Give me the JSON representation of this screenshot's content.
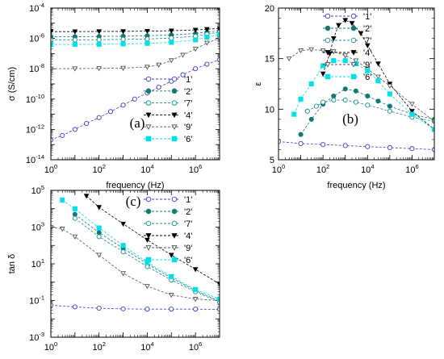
{
  "chart_data": [
    {
      "type": "scatter",
      "panel_label": "(a)",
      "xlabel": "frequency (Hz)",
      "ylabel": "σ (S/cm)",
      "xscale": "log",
      "yscale": "log",
      "xlim": [
        1,
        10000000
      ],
      "ylim": [
        1e-14,
        0.0001
      ],
      "x_ticks": [
        {
          "v": 1,
          "b": "10",
          "e": "0"
        },
        {
          "v": 100,
          "b": "10",
          "e": "2"
        },
        {
          "v": 10000,
          "b": "10",
          "e": "4"
        },
        {
          "v": 1000000,
          "b": "10",
          "e": "6"
        }
      ],
      "y_ticks": [
        {
          "v": 1e-14,
          "b": "10",
          "e": "-14"
        },
        {
          "v": 1e-12,
          "b": "10",
          "e": "-12"
        },
        {
          "v": 1e-10,
          "b": "10",
          "e": "-10"
        },
        {
          "v": 1e-08,
          "b": "10",
          "e": "-8"
        },
        {
          "v": 1e-06,
          "b": "10",
          "e": "-6"
        },
        {
          "v": 0.0001,
          "b": "10",
          "e": "-4"
        }
      ],
      "legend_position": "bottom-right",
      "series": [
        {
          "name": "'1'",
          "marker": "circle-open",
          "color": "#3c3cc8",
          "x": [
            1,
            3,
            10,
            30,
            100,
            300,
            1000,
            3000,
            10000,
            30000,
            100000,
            300000,
            1000000,
            3000000,
            10000000
          ],
          "y": [
            2e-13,
            4e-13,
            1e-12,
            2.5e-12,
            6e-12,
            1.5e-11,
            4e-11,
            1e-10,
            2.5e-10,
            6e-10,
            1.5e-09,
            4e-09,
            1e-08,
            2e-08,
            4e-08
          ]
        },
        {
          "name": "'2'",
          "marker": "circle-filled",
          "color": "#127a74",
          "x": [
            1,
            10,
            100,
            1000,
            10000,
            100000,
            1000000,
            3000000,
            10000000
          ],
          "y": [
            1.3e-06,
            1.3e-06,
            1.35e-06,
            1.4e-06,
            1.5e-06,
            1.7e-06,
            2.1e-06,
            2.6e-06,
            3.2e-06
          ]
        },
        {
          "name": "'7'",
          "marker": "circle-open",
          "color": "#1a8f8a",
          "x": [
            1,
            10,
            100,
            1000,
            10000,
            100000,
            1000000,
            3000000,
            10000000
          ],
          "y": [
            8e-07,
            8e-07,
            8.2e-07,
            8.6e-07,
            9.2e-07,
            1.05e-06,
            1.4e-06,
            1.9e-06,
            2.6e-06
          ]
        },
        {
          "name": "'4'",
          "marker": "triangle-down-filled",
          "color": "#000000",
          "x": [
            1,
            10,
            100,
            1000,
            10000,
            100000,
            1000000,
            3000000,
            10000000
          ],
          "y": [
            2.8e-06,
            2.8e-06,
            2.85e-06,
            2.9e-06,
            3e-06,
            3.2e-06,
            3.6e-06,
            4e-06,
            4.5e-06
          ]
        },
        {
          "name": "'9'",
          "marker": "triangle-down-open",
          "color": "#555555",
          "x": [
            1,
            10,
            100,
            1000,
            10000,
            30000,
            100000,
            300000,
            1000000,
            3000000,
            10000000
          ],
          "y": [
            1e-08,
            1.02e-08,
            1.05e-08,
            1.1e-08,
            1.3e-08,
            1.8e-08,
            3.5e-08,
            8e-08,
            2e-07,
            5e-07,
            1e-06
          ]
        },
        {
          "name": "'6'",
          "marker": "square-filled",
          "color": "#00e0e8",
          "x": [
            1,
            10,
            100,
            1000,
            10000,
            100000,
            1000000,
            3000000,
            10000000
          ],
          "y": [
            4e-07,
            4e-07,
            4.1e-07,
            4.3e-07,
            4.7e-07,
            5.5e-07,
            8e-07,
            1.2e-06,
            1.8e-06
          ]
        }
      ]
    },
    {
      "type": "scatter",
      "panel_label": "(b)",
      "xlabel": "frequency (Hz)",
      "ylabel": "ε",
      "xscale": "log",
      "yscale": "linear",
      "xlim": [
        1,
        10000000
      ],
      "ylim": [
        5,
        20
      ],
      "x_ticks": [
        {
          "v": 1,
          "b": "10",
          "e": "0"
        },
        {
          "v": 100,
          "b": "10",
          "e": "2"
        },
        {
          "v": 10000,
          "b": "10",
          "e": "4"
        },
        {
          "v": 1000000,
          "b": "10",
          "e": "6"
        }
      ],
      "y_ticks": [
        {
          "v": 5,
          "b": "5",
          "e": ""
        },
        {
          "v": 10,
          "b": "10",
          "e": ""
        },
        {
          "v": 15,
          "b": "15",
          "e": ""
        },
        {
          "v": 20,
          "b": "20",
          "e": ""
        }
      ],
      "legend_position": "top-right",
      "series": [
        {
          "name": "'1'",
          "marker": "circle-open",
          "color": "#3c3cc8",
          "x": [
            1,
            10,
            100,
            1000,
            10000,
            100000,
            1000000,
            10000000
          ],
          "y": [
            6.8,
            6.6,
            6.5,
            6.4,
            6.3,
            6.2,
            6.1,
            6.0
          ]
        },
        {
          "name": "'2'",
          "marker": "circle-filled",
          "color": "#127a74",
          "x": [
            10,
            30,
            100,
            300,
            1000,
            3000,
            10000,
            30000,
            100000,
            1000000,
            10000000
          ],
          "y": [
            7.5,
            9,
            10.5,
            11.3,
            12,
            11.8,
            11.3,
            10.8,
            10.3,
            9.5,
            9.0
          ]
        },
        {
          "name": "'7'",
          "marker": "circle-open",
          "color": "#1a8f8a",
          "x": [
            20,
            50,
            100,
            300,
            1000,
            3000,
            10000,
            100000,
            1000000,
            10000000
          ],
          "y": [
            9.8,
            10.3,
            10.7,
            10.9,
            10.9,
            10.7,
            10.4,
            9.8,
            9.2,
            8.8
          ]
        },
        {
          "name": "'4'",
          "marker": "triangle-down-filled",
          "color": "#000000",
          "x": [
            100,
            200,
            300,
            500,
            1000,
            2000,
            5000,
            10000,
            30000,
            100000,
            1000000,
            10000000
          ],
          "y": [
            13.5,
            15.5,
            17,
            18.3,
            18.8,
            18.5,
            17.5,
            16.3,
            14.5,
            12.5,
            9.8,
            8.0
          ]
        },
        {
          "name": "'9'",
          "marker": "triangle-down-open",
          "color": "#555555",
          "x": [
            3,
            10,
            30,
            100,
            300,
            1000,
            3000,
            10000,
            30000,
            100000,
            1000000,
            10000000
          ],
          "y": [
            15,
            15.8,
            15.9,
            15.8,
            15.7,
            15.3,
            14.8,
            14,
            13.2,
            12.3,
            10.5,
            8.8
          ]
        },
        {
          "name": "'6'",
          "marker": "square-filled",
          "color": "#00e0e8",
          "x": [
            5,
            10,
            30,
            100,
            300,
            1000,
            3000,
            10000,
            30000,
            100000,
            1000000,
            10000000
          ],
          "y": [
            9.5,
            11,
            12.5,
            14.3,
            14.8,
            14.8,
            14.5,
            13.8,
            12.8,
            11.5,
            9.5,
            8.0
          ]
        }
      ]
    },
    {
      "type": "scatter",
      "panel_label": "(c)",
      "xlabel": "frequency (Hz)",
      "ylabel": "tan δ",
      "xscale": "log",
      "yscale": "log",
      "xlim": [
        1,
        10000000
      ],
      "ylim": [
        0.001,
        100000
      ],
      "x_ticks": [
        {
          "v": 1,
          "b": "10",
          "e": "0"
        },
        {
          "v": 100,
          "b": "10",
          "e": "2"
        },
        {
          "v": 10000,
          "b": "10",
          "e": "4"
        },
        {
          "v": 1000000,
          "b": "10",
          "e": "6"
        }
      ],
      "y_ticks": [
        {
          "v": 0.001,
          "b": "10",
          "e": "-3"
        },
        {
          "v": 0.1,
          "b": "10",
          "e": "-1"
        },
        {
          "v": 10,
          "b": "10",
          "e": "1"
        },
        {
          "v": 1000,
          "b": "10",
          "e": "3"
        },
        {
          "v": 100000,
          "b": "10",
          "e": "5"
        }
      ],
      "legend_position": "top-right",
      "series": [
        {
          "name": "'1'",
          "marker": "circle-open",
          "color": "#3c3cc8",
          "x": [
            1,
            10,
            100,
            1000,
            10000,
            100000,
            1000000,
            10000000
          ],
          "y": [
            0.055,
            0.045,
            0.038,
            0.035,
            0.034,
            0.034,
            0.034,
            0.033
          ]
        },
        {
          "name": "'2'",
          "marker": "circle-filled",
          "color": "#127a74",
          "x": [
            10,
            100,
            1000,
            10000,
            100000,
            1000000,
            10000000
          ],
          "y": [
            5000,
            500,
            70,
            10,
            1.7,
            0.35,
            0.09
          ]
        },
        {
          "name": "'7'",
          "marker": "circle-open",
          "color": "#1a8f8a",
          "x": [
            10,
            100,
            1000,
            10000,
            100000,
            1000000,
            10000000
          ],
          "y": [
            3000,
            300,
            45,
            7,
            1.3,
            0.3,
            0.08
          ]
        },
        {
          "name": "'4'",
          "marker": "triangle-down-filled",
          "color": "#000000",
          "x": [
            30,
            100,
            1000,
            10000,
            100000,
            1000000,
            10000000
          ],
          "y": [
            50000,
            12000,
            1500,
            200,
            30,
            5,
            0.8
          ]
        },
        {
          "name": "'9'",
          "marker": "triangle-down-open",
          "color": "#555555",
          "x": [
            1,
            3,
            10,
            100,
            1000,
            10000,
            100000,
            1000000,
            10000000
          ],
          "y": [
            1000,
            800,
            300,
            30,
            3,
            0.6,
            0.2,
            0.12,
            0.1
          ]
        },
        {
          "name": "'6'",
          "marker": "square-filled",
          "color": "#00e0e8",
          "x": [
            3,
            10,
            100,
            1000,
            10000,
            100000,
            1000000,
            10000000
          ],
          "y": [
            30000,
            10000,
            900,
            100,
            12,
            2,
            0.4,
            0.12
          ]
        }
      ]
    }
  ]
}
